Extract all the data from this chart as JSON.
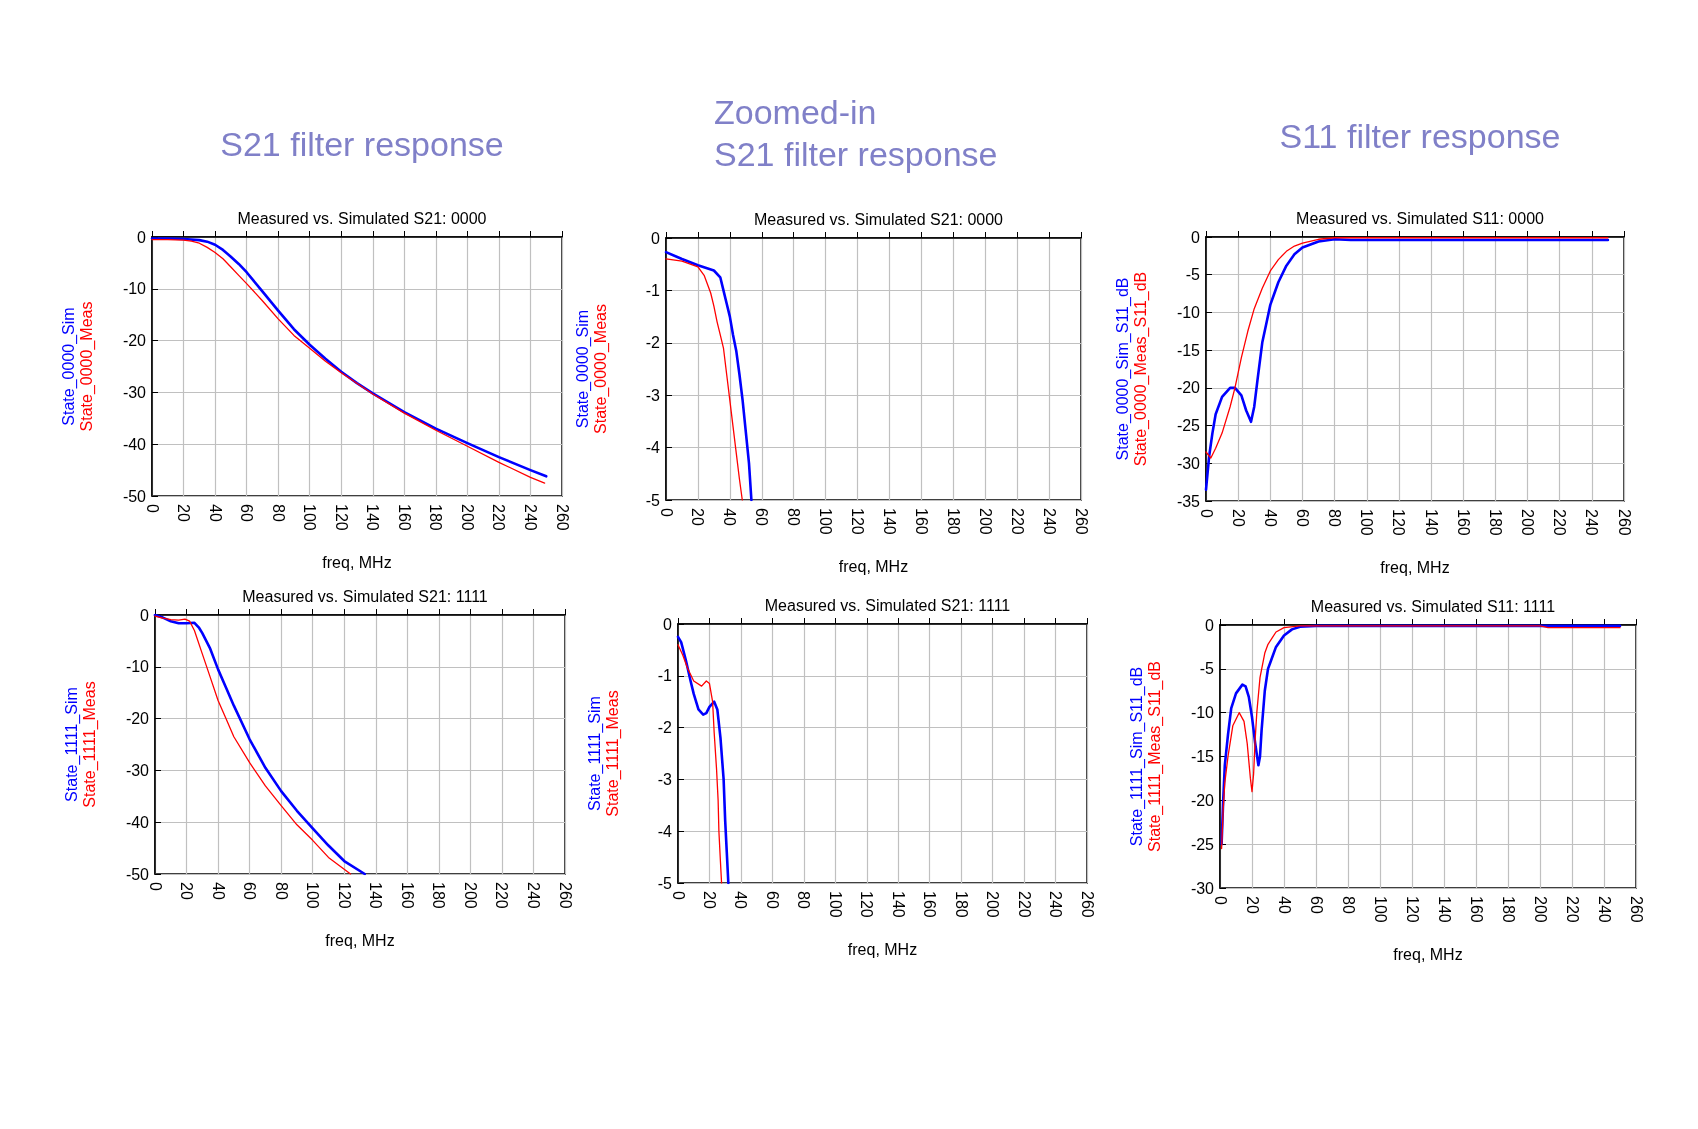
{
  "chart_data": [
    {
      "type": "line",
      "title": "S21 filter response",
      "subtitle": "Measured vs. Simulated S21: 0000",
      "xlabel": "freq, MHz",
      "xlim": [
        0,
        260
      ],
      "xticks": [
        0,
        20,
        40,
        60,
        80,
        100,
        120,
        140,
        160,
        180,
        200,
        220,
        240,
        260
      ],
      "ylim": [
        -50,
        0
      ],
      "yticks": [
        -50,
        -40,
        -30,
        -20,
        -10,
        0
      ],
      "grid": true,
      "legend": "left",
      "marker": "none",
      "line_style": "solid",
      "series": [
        {
          "name": "State_0000_Sim",
          "color": "#0000ff",
          "x": [
            0,
            10,
            20,
            30,
            35,
            40,
            45,
            50,
            55,
            60,
            70,
            80,
            90,
            100,
            110,
            120,
            130,
            140,
            160,
            180,
            200,
            220,
            240,
            250
          ],
          "values": [
            -0.3,
            -0.3,
            -0.4,
            -0.6,
            -0.9,
            -1.5,
            -2.5,
            -3.8,
            -5.2,
            -6.8,
            -10.5,
            -14.2,
            -17.8,
            -20.8,
            -23.5,
            -26,
            -28.2,
            -30.2,
            -33.8,
            -37,
            -39.8,
            -42.5,
            -45,
            -46.2
          ]
        },
        {
          "name": "State_0000_Meas",
          "color": "#ff0000",
          "x": [
            0,
            10,
            20,
            25,
            30,
            35,
            40,
            45,
            50,
            55,
            60,
            70,
            80,
            90,
            100,
            110,
            120,
            140,
            160,
            180,
            200,
            220,
            240,
            249
          ],
          "values": [
            -0.5,
            -0.5,
            -0.6,
            -0.8,
            -1.2,
            -2,
            -3,
            -4.2,
            -5.8,
            -7.4,
            -9,
            -12.3,
            -15.8,
            -19,
            -21.5,
            -24,
            -26.2,
            -30.3,
            -34,
            -37.3,
            -40.4,
            -43.5,
            -46.4,
            -47.5
          ]
        }
      ]
    },
    {
      "type": "line",
      "title": "Zoomed-in\nS21 filter response",
      "subtitle": "Measured vs. Simulated S21: 0000",
      "xlabel": "freq, MHz",
      "xlim": [
        0,
        260
      ],
      "xticks": [
        0,
        20,
        40,
        60,
        80,
        100,
        120,
        140,
        160,
        180,
        200,
        220,
        240,
        260
      ],
      "ylim": [
        -5,
        0
      ],
      "yticks": [
        -5,
        -4,
        -3,
        -2,
        -1,
        0
      ],
      "grid": true,
      "legend": "left",
      "marker": "none",
      "line_style": "solid",
      "series": [
        {
          "name": "State_0000_Sim",
          "color": "#0000ff",
          "x": [
            0,
            10,
            20,
            30,
            34,
            36,
            38,
            40,
            42,
            44,
            46,
            48,
            50,
            52,
            53.5
          ],
          "values": [
            -0.27,
            -0.4,
            -0.52,
            -0.62,
            -0.75,
            -1,
            -1.25,
            -1.5,
            -1.85,
            -2.15,
            -2.6,
            -3.1,
            -3.7,
            -4.3,
            -5
          ]
        },
        {
          "name": "State_0000_Meas",
          "color": "#ff0000",
          "x": [
            0,
            10,
            20,
            24,
            28,
            30,
            32,
            34,
            36,
            38,
            40,
            42,
            44,
            46,
            47.8
          ],
          "values": [
            -0.4,
            -0.44,
            -0.55,
            -0.72,
            -1.05,
            -1.3,
            -1.6,
            -1.85,
            -2.1,
            -2.6,
            -3.1,
            -3.6,
            -4.1,
            -4.6,
            -5
          ]
        }
      ]
    },
    {
      "type": "line",
      "title": "S11 filter response",
      "subtitle": "Measured vs. Simulated S11: 0000",
      "xlabel": "freq, MHz",
      "xlim": [
        0,
        260
      ],
      "xticks": [
        0,
        20,
        40,
        60,
        80,
        100,
        120,
        140,
        160,
        180,
        200,
        220,
        240,
        260
      ],
      "ylim": [
        -35,
        0
      ],
      "yticks": [
        -35,
        -30,
        -25,
        -20,
        -15,
        -10,
        -5,
        0
      ],
      "grid": true,
      "legend": "left",
      "marker": "none",
      "line_style": "solid",
      "series": [
        {
          "name": "State_0000_Sim_S11_dB",
          "color": "#0000ff",
          "x": [
            0,
            2,
            4,
            6,
            10,
            15,
            18,
            22,
            25,
            28,
            30,
            32,
            35,
            38,
            40,
            45,
            50,
            55,
            60,
            70,
            80,
            90,
            100,
            250
          ],
          "values": [
            -33.5,
            -29,
            -26,
            -23.5,
            -21.2,
            -20,
            -20,
            -21,
            -23,
            -24.5,
            -22.5,
            -19,
            -14,
            -11,
            -9,
            -6,
            -3.8,
            -2.3,
            -1.4,
            -0.6,
            -0.3,
            -0.4,
            -0.4,
            -0.4
          ]
        },
        {
          "name": "State_0000_Meas_S11_dB",
          "color": "#ff0000",
          "x": [
            0,
            3,
            6,
            10,
            15,
            18,
            22,
            26,
            30,
            35,
            40,
            45,
            50,
            55,
            60,
            70,
            80,
            100,
            250
          ],
          "values": [
            -28.5,
            -29.3,
            -28,
            -26,
            -22.5,
            -20,
            -16,
            -12.5,
            -9.5,
            -6.8,
            -4.5,
            -3,
            -1.9,
            -1.2,
            -0.8,
            -0.3,
            -0.1,
            -0.1,
            -0.1
          ]
        }
      ]
    },
    {
      "type": "line",
      "title": "Measured vs. Simulated S21: 1111",
      "xlabel": "freq, MHz",
      "xlim": [
        0,
        260
      ],
      "xticks": [
        0,
        20,
        40,
        60,
        80,
        100,
        120,
        140,
        160,
        180,
        200,
        220,
        240,
        260
      ],
      "ylim": [
        -50,
        0
      ],
      "yticks": [
        -50,
        -40,
        -30,
        -20,
        -10,
        0
      ],
      "grid": true,
      "legend": "left",
      "marker": "none",
      "line_style": "solid",
      "series": [
        {
          "name": "State_1111_Sim",
          "color": "#0000ff",
          "x": [
            0,
            5,
            10,
            15,
            20,
            25,
            28,
            30,
            35,
            40,
            45,
            50,
            60,
            70,
            80,
            90,
            100,
            110,
            120,
            133
          ],
          "values": [
            0,
            -0.5,
            -1.2,
            -1.6,
            -1.6,
            -1.5,
            -2.5,
            -3.5,
            -6.5,
            -10.5,
            -14,
            -17.5,
            -24,
            -29.5,
            -34,
            -37.8,
            -41.2,
            -44.5,
            -47.5,
            -50
          ]
        },
        {
          "name": "State_1111_Meas",
          "color": "#ff0000",
          "x": [
            0,
            5,
            10,
            15,
            19,
            22,
            25,
            30,
            35,
            40,
            45,
            50,
            60,
            70,
            80,
            90,
            100,
            110,
            124
          ],
          "values": [
            -0.2,
            -0.6,
            -0.9,
            -1,
            -0.8,
            -1.2,
            -3,
            -7.5,
            -12,
            -16.5,
            -20,
            -23.5,
            -28.5,
            -33,
            -36.8,
            -40.5,
            -43.5,
            -46.8,
            -50
          ]
        }
      ]
    },
    {
      "type": "line",
      "title": "Measured vs. Simulated S21: 1111",
      "xlabel": "freq, MHz",
      "xlim": [
        0,
        260
      ],
      "xticks": [
        0,
        20,
        40,
        60,
        80,
        100,
        120,
        140,
        160,
        180,
        200,
        220,
        240,
        260
      ],
      "ylim": [
        -5,
        0
      ],
      "yticks": [
        -5,
        -4,
        -3,
        -2,
        -1,
        0
      ],
      "grid": true,
      "legend": "left",
      "marker": "none",
      "line_style": "solid",
      "series": [
        {
          "name": "State_1111_Sim",
          "color": "#0000ff",
          "x": [
            0,
            2,
            5,
            8,
            10,
            13,
            16,
            18,
            20,
            23,
            25,
            27,
            29,
            30,
            31,
            32
          ],
          "values": [
            -0.25,
            -0.35,
            -0.7,
            -1.1,
            -1.35,
            -1.65,
            -1.75,
            -1.72,
            -1.6,
            -1.5,
            -1.65,
            -2.2,
            -3,
            -3.8,
            -4.4,
            -5
          ]
        },
        {
          "name": "State_1111_Meas",
          "color": "#ff0000",
          "x": [
            0,
            3,
            6,
            10,
            15,
            18,
            20,
            22,
            23,
            24.5,
            25.5,
            26,
            27,
            27.7
          ],
          "values": [
            -0.4,
            -0.6,
            -0.85,
            -1.1,
            -1.2,
            -1.1,
            -1.15,
            -1.5,
            -2.1,
            -2.8,
            -3.4,
            -4,
            -4.6,
            -5
          ]
        }
      ]
    },
    {
      "type": "line",
      "title": "Measured vs. Simulated S11: 1111",
      "xlabel": "freq, MHz",
      "xlim": [
        0,
        260
      ],
      "xticks": [
        0,
        20,
        40,
        60,
        80,
        100,
        120,
        140,
        160,
        180,
        200,
        220,
        240,
        260
      ],
      "ylim": [
        -30,
        0
      ],
      "yticks": [
        -30,
        -25,
        -20,
        -15,
        -10,
        -5,
        0
      ],
      "grid": true,
      "legend": "left",
      "marker": "none",
      "line_style": "solid",
      "series": [
        {
          "name": "State_1111_Sim_S11_dB",
          "color": "#0000ff",
          "x": [
            1,
            2,
            3,
            5,
            7,
            10,
            14,
            16,
            18,
            20,
            22,
            24,
            25,
            26,
            28,
            30,
            35,
            40,
            45,
            50,
            60,
            250
          ],
          "values": [
            -25,
            -20,
            -16,
            -12.5,
            -9.5,
            -7.8,
            -6.8,
            -7,
            -8.2,
            -10.5,
            -13.5,
            -16,
            -15,
            -12,
            -7.5,
            -5,
            -2.5,
            -1.2,
            -0.5,
            -0.2,
            -0.1,
            -0.1
          ]
        },
        {
          "name": "State_1111_Meas_S11_dB",
          "color": "#ff0000",
          "x": [
            1,
            2,
            3,
            5,
            8,
            12,
            15,
            17,
            19,
            20,
            21,
            22,
            23,
            25,
            28,
            30,
            35,
            40,
            50,
            200,
            205,
            250
          ],
          "values": [
            -25.5,
            -21,
            -18,
            -15,
            -11.5,
            -10,
            -11,
            -13.5,
            -17.5,
            -19,
            -17,
            -13,
            -10,
            -6,
            -3.2,
            -2.2,
            -0.8,
            -0.3,
            -0.1,
            -0.1,
            -0.3,
            -0.3
          ]
        }
      ]
    }
  ]
}
